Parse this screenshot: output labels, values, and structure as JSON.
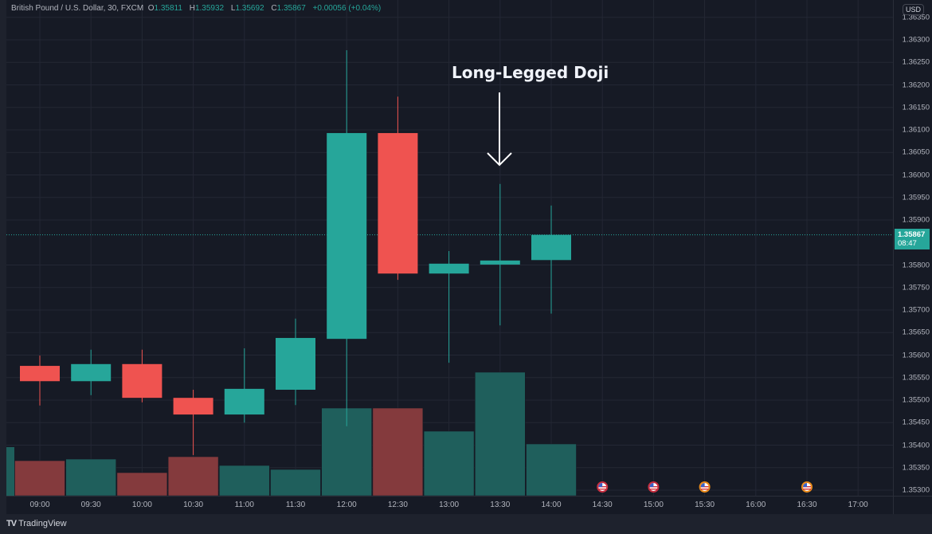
{
  "header": {
    "symbol": "British Pound / U.S. Dollar, 30, FXCM",
    "o_label": "O",
    "o_value": "1.35811",
    "h_label": "H",
    "h_value": "1.35932",
    "l_label": "L",
    "l_value": "1.35692",
    "c_label": "C",
    "c_value": "1.35867",
    "change": "+0.00056 (+0.04%)"
  },
  "price_axis": {
    "currency": "USD",
    "labels": [
      "1.36350",
      "1.36300",
      "1.36250",
      "1.36200",
      "1.36150",
      "1.36100",
      "1.36050",
      "1.36000",
      "1.35950",
      "1.35900",
      "1.35800",
      "1.35750",
      "1.35700",
      "1.35650",
      "1.35600",
      "1.35550",
      "1.35500",
      "1.35450",
      "1.35400",
      "1.35350",
      "1.35300"
    ],
    "last_price": "1.35867",
    "countdown": "08:47"
  },
  "time_axis": {
    "labels": [
      "09:00",
      "09:30",
      "10:00",
      "10:30",
      "11:00",
      "11:30",
      "12:00",
      "12:30",
      "13:00",
      "13:30",
      "14:00",
      "14:30",
      "15:00",
      "15:30",
      "16:00",
      "16:30",
      "17:00"
    ]
  },
  "annotation": {
    "text": "Long-Legged Doji",
    "arrow": "down-arrow",
    "target_candle": "13:30"
  },
  "events": [
    {
      "time": "14:30",
      "icon": "us-flag-icon",
      "ring": "#c62d3f"
    },
    {
      "time": "15:00",
      "icon": "us-flag-icon",
      "ring": "#c62d3f"
    },
    {
      "time": "15:30",
      "icon": "us-flag-icon",
      "ring": "#e8891a"
    },
    {
      "time": "16:30",
      "icon": "us-flag-icon",
      "ring": "#e8891a"
    }
  ],
  "footer": {
    "brand": "TradingView",
    "logo_mark": "TV"
  },
  "colors": {
    "up": "#26a69a",
    "down": "#ef5350",
    "vol_up": "#1f5f5c",
    "vol_down": "#843a3d",
    "grid": "#232734",
    "background": "#161a25"
  },
  "chart_data": {
    "type": "candlestick",
    "title": "British Pound / U.S. Dollar, 30, FXCM",
    "xlabel": "",
    "ylabel": "USD",
    "ylim": [
      1.353,
      1.3636
    ],
    "grid": true,
    "categories": [
      "09:00",
      "09:30",
      "10:00",
      "10:30",
      "11:00",
      "11:30",
      "12:00",
      "12:30",
      "13:00",
      "13:30",
      "14:00"
    ],
    "series": [
      {
        "name": "open",
        "values": [
          1.35576,
          1.35542,
          1.3558,
          1.35505,
          1.35468,
          1.35523,
          1.35636,
          1.36093,
          1.35781,
          1.35801,
          1.35811
        ]
      },
      {
        "name": "high",
        "values": [
          1.35599,
          1.35612,
          1.35612,
          1.35523,
          1.35615,
          1.35681,
          1.36277,
          1.36174,
          1.35831,
          1.3598,
          1.35932
        ]
      },
      {
        "name": "low",
        "values": [
          1.35488,
          1.35511,
          1.35495,
          1.35378,
          1.3545,
          1.35489,
          1.35442,
          1.35767,
          1.35583,
          1.35666,
          1.35692
        ]
      },
      {
        "name": "close",
        "values": [
          1.35542,
          1.3558,
          1.35505,
          1.35468,
          1.35525,
          1.35638,
          1.36093,
          1.35781,
          1.35803,
          1.3581,
          1.35867
        ]
      },
      {
        "name": "volume_relative",
        "values": [
          44,
          46,
          29,
          49,
          38,
          33,
          110,
          110,
          81,
          155,
          65
        ]
      }
    ],
    "direction": [
      "down",
      "up",
      "down",
      "down",
      "up",
      "up",
      "up",
      "down",
      "up",
      "up",
      "up"
    ],
    "annotations": [
      {
        "text": "Long-Legged Doji",
        "x": "13:30",
        "type": "arrow-down"
      }
    ],
    "last_price": 1.35867
  }
}
